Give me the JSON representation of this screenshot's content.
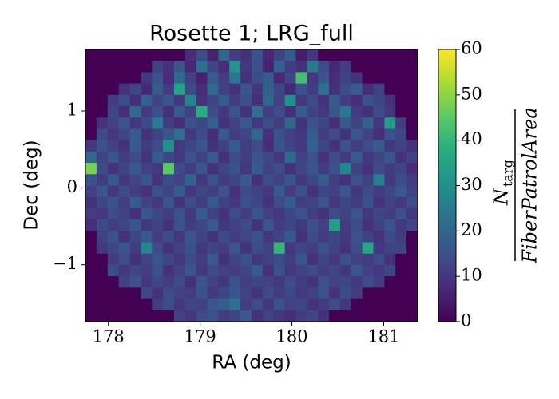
{
  "chart_data": {
    "type": "heatmap",
    "title": "Rosette 1; LRG_full",
    "xlabel": "RA (deg)",
    "ylabel": "Dec (deg)",
    "colorbar_label": {
      "numerator": "N",
      "numerator_sub": "targ",
      "denominator": "FiberPatrolArea"
    },
    "colormap": "viridis",
    "xlim": [
      177.75,
      181.37
    ],
    "ylim": [
      -1.74,
      1.8
    ],
    "xticks": [
      178,
      179,
      180,
      181
    ],
    "yticks": [
      {
        "value": -1,
        "label": "−1"
      },
      0,
      1
    ],
    "zlim": [
      0,
      60
    ],
    "zticks": [
      0,
      10,
      20,
      30,
      40,
      50,
      60
    ],
    "z": [
      [
        0,
        0,
        0,
        0,
        0,
        0,
        0,
        0,
        0,
        8,
        14,
        6,
        20,
        11,
        9,
        15,
        7,
        12,
        18,
        5,
        10,
        0,
        0,
        0,
        0,
        0,
        0,
        0,
        0,
        0
      ],
      [
        0,
        0,
        0,
        0,
        0,
        0,
        12,
        9,
        16,
        7,
        22,
        13,
        8,
        31,
        10,
        15,
        6,
        19,
        11,
        9,
        25,
        14,
        7,
        11,
        0,
        0,
        0,
        0,
        0,
        0
      ],
      [
        0,
        0,
        0,
        0,
        0,
        10,
        15,
        8,
        20,
        12,
        6,
        17,
        11,
        24,
        9,
        14,
        18,
        7,
        13,
        42,
        10,
        16,
        8,
        12,
        9,
        0,
        0,
        0,
        0,
        0
      ],
      [
        0,
        0,
        0,
        9,
        13,
        7,
        18,
        11,
        35,
        14,
        8,
        21,
        12,
        9,
        16,
        10,
        19,
        13,
        7,
        15,
        11,
        22,
        9,
        14,
        18,
        8,
        12,
        0,
        0,
        0
      ],
      [
        0,
        0,
        11,
        14,
        8,
        19,
        12,
        16,
        10,
        27,
        9,
        13,
        18,
        11,
        15,
        8,
        20,
        12,
        30,
        10,
        14,
        9,
        17,
        11,
        8,
        15,
        13,
        9,
        0,
        0
      ],
      [
        0,
        0,
        13,
        8,
        21,
        11,
        15,
        9,
        17,
        12,
        38,
        14,
        10,
        16,
        9,
        22,
        11,
        14,
        8,
        18,
        12,
        10,
        16,
        24,
        11,
        9,
        14,
        10,
        0,
        0
      ],
      [
        0,
        9,
        12,
        16,
        10,
        14,
        25,
        11,
        8,
        15,
        13,
        19,
        9,
        12,
        17,
        10,
        14,
        11,
        20,
        9,
        15,
        13,
        8,
        17,
        12,
        19,
        10,
        33,
        11,
        0
      ],
      [
        0,
        14,
        10,
        13,
        18,
        9,
        12,
        16,
        22,
        10,
        14,
        8,
        17,
        11,
        13,
        20,
        9,
        15,
        12,
        10,
        18,
        11,
        14,
        9,
        16,
        12,
        8,
        15,
        13,
        0
      ],
      [
        10,
        15,
        12,
        9,
        17,
        11,
        14,
        30,
        10,
        13,
        16,
        9,
        12,
        18,
        11,
        14,
        8,
        16,
        12,
        10,
        19,
        13,
        9,
        15,
        11,
        14,
        18,
        10,
        12,
        9
      ],
      [
        20,
        12,
        16,
        11,
        14,
        9,
        18,
        13,
        10,
        15,
        12,
        17,
        9,
        14,
        11,
        16,
        13,
        10,
        21,
        12,
        15,
        9,
        14,
        11,
        17,
        10,
        13,
        16,
        9,
        12
      ],
      [
        48,
        14,
        9,
        13,
        17,
        12,
        10,
        45,
        14,
        11,
        16,
        9,
        13,
        15,
        10,
        18,
        12,
        14,
        9,
        13,
        16,
        11,
        15,
        28,
        12,
        9,
        14,
        11,
        13,
        8
      ],
      [
        15,
        11,
        17,
        10,
        13,
        16,
        9,
        14,
        12,
        19,
        10,
        15,
        11,
        13,
        17,
        9,
        14,
        12,
        16,
        10,
        13,
        18,
        11,
        9,
        15,
        12,
        26,
        10,
        14,
        11
      ],
      [
        12,
        16,
        10,
        14,
        11,
        9,
        15,
        12,
        18,
        10,
        13,
        11,
        16,
        9,
        14,
        12,
        10,
        17,
        11,
        15,
        9,
        13,
        12,
        16,
        10,
        14,
        11,
        13,
        17,
        12
      ],
      [
        9,
        13,
        15,
        11,
        18,
        12,
        10,
        16,
        9,
        14,
        11,
        17,
        12,
        10,
        15,
        13,
        9,
        14,
        18,
        11,
        12,
        16,
        10,
        13,
        11,
        15,
        9,
        12,
        10,
        14
      ],
      [
        11,
        10,
        14,
        12,
        9,
        16,
        13,
        11,
        15,
        10,
        18,
        12,
        9,
        14,
        11,
        16,
        12,
        10,
        13,
        15,
        11,
        9,
        14,
        12,
        16,
        10,
        13,
        11,
        15,
        10
      ],
      [
        8,
        14,
        11,
        13,
        16,
        10,
        12,
        9,
        15,
        11,
        13,
        17,
        10,
        12,
        14,
        9,
        16,
        11,
        13,
        10,
        15,
        12,
        34,
        11,
        14,
        9,
        12,
        16,
        10,
        13
      ],
      [
        0,
        12,
        15,
        9,
        13,
        17,
        11,
        14,
        10,
        16,
        12,
        9,
        14,
        11,
        13,
        15,
        10,
        12,
        17,
        9,
        14,
        11,
        13,
        10,
        15,
        12,
        9,
        14,
        11,
        0
      ],
      [
        0,
        10,
        13,
        16,
        11,
        28,
        14,
        9,
        12,
        15,
        10,
        13,
        11,
        16,
        9,
        14,
        12,
        40,
        10,
        13,
        11,
        15,
        12,
        9,
        14,
        36,
        10,
        12,
        13,
        0
      ],
      [
        0,
        0,
        11,
        14,
        9,
        12,
        16,
        13,
        10,
        14,
        11,
        17,
        9,
        13,
        15,
        10,
        12,
        14,
        11,
        16,
        9,
        13,
        10,
        15,
        12,
        11,
        14,
        9,
        0,
        0
      ],
      [
        0,
        0,
        14,
        10,
        13,
        11,
        15,
        9,
        12,
        16,
        10,
        14,
        12,
        11,
        13,
        17,
        9,
        15,
        10,
        12,
        14,
        11,
        13,
        10,
        16,
        12,
        10,
        13,
        0,
        0
      ],
      [
        0,
        0,
        0,
        12,
        15,
        10,
        13,
        11,
        14,
        9,
        16,
        12,
        10,
        15,
        11,
        13,
        12,
        10,
        14,
        11,
        9,
        15,
        12,
        13,
        10,
        14,
        11,
        0,
        0,
        0
      ],
      [
        0,
        0,
        0,
        0,
        0,
        13,
        9,
        14,
        12,
        11,
        15,
        10,
        13,
        16,
        12,
        9,
        14,
        11,
        13,
        10,
        12,
        15,
        9,
        14,
        11,
        0,
        0,
        0,
        0,
        0
      ],
      [
        0,
        0,
        0,
        0,
        0,
        0,
        11,
        14,
        10,
        13,
        12,
        16,
        18,
        22,
        11,
        14,
        10,
        15,
        12,
        13,
        9,
        11,
        14,
        10,
        0,
        0,
        0,
        0,
        0,
        0
      ],
      [
        0,
        0,
        0,
        0,
        0,
        0,
        0,
        0,
        12,
        10,
        14,
        15,
        11,
        13,
        17,
        9,
        12,
        10,
        8,
        11,
        13,
        9,
        0,
        0,
        0,
        0,
        0,
        0,
        0,
        0
      ]
    ]
  }
}
